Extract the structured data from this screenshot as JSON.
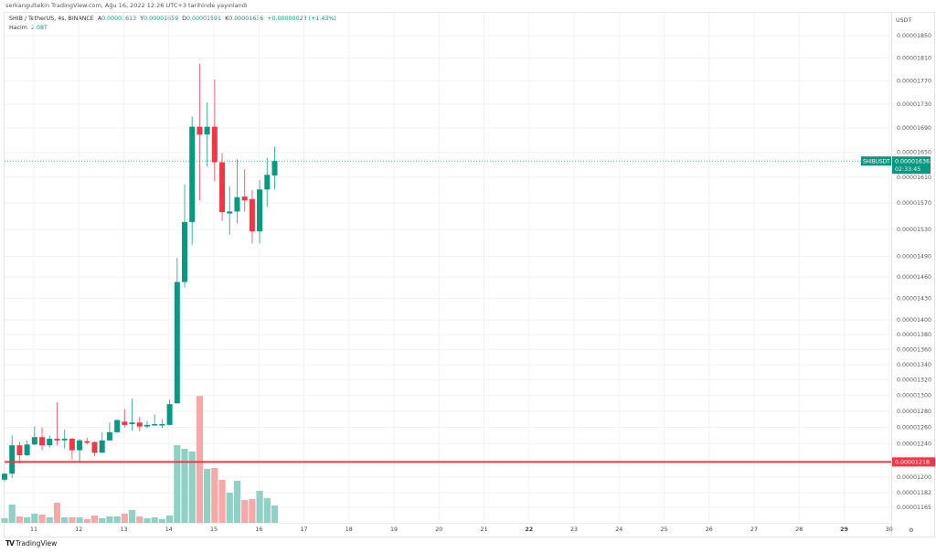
{
  "header": {
    "published": "serkangultekin TradingView.com, Ağu 16, 2022 12:26 UTC+3 tarihinde yayınlandı",
    "symbol_line": "SHIB / TetherUS, 4s, BINANCE",
    "open_label": "A",
    "open": "0.00001613",
    "high_label": "Y",
    "high": "0.00001659",
    "low_label": "D",
    "low": "0.00001591",
    "close_label": "K",
    "close": "0.00001636",
    "change": "+0.00000023 (+1.43%)",
    "volume_label": "Hacim",
    "volume": "2.08T"
  },
  "footer": {
    "brand": "TradingView"
  },
  "colors": {
    "up": "#089981",
    "down": "#f23645",
    "up_volume": "#8fd1c5",
    "down_volume": "#f7a9a9",
    "level_line": "#f23645"
  },
  "chart_data": {
    "type": "candlestick",
    "symbol": "SHIBUSDT",
    "timeframe": "4s",
    "y_scale": "log",
    "ylim": [
      1.15e-05,
      1.87e-05
    ],
    "currency": "USDT",
    "grid": true,
    "y_ticks": [
      "0.00001850",
      "0.00001810",
      "0.00001770",
      "0.00001730",
      "0.00001690",
      "0.00001650",
      "0.00001610",
      "0.00001570",
      "0.00001530",
      "0.00001490",
      "0.00001460",
      "0.00001430",
      "0.00001400",
      "0.00001380",
      "0.00001360",
      "0.00001340",
      "0.00001320",
      "0.00001300",
      "0.00001280",
      "0.00001260",
      "0.00001240",
      "0.00001200",
      "0.00001182",
      "0.00001165"
    ],
    "x_ticks": [
      {
        "label": "11",
        "bold": false
      },
      {
        "label": "12",
        "bold": false
      },
      {
        "label": "13",
        "bold": false
      },
      {
        "label": "14",
        "bold": false
      },
      {
        "label": "15",
        "bold": false
      },
      {
        "label": "16",
        "bold": false
      },
      {
        "label": "17",
        "bold": false
      },
      {
        "label": "18",
        "bold": false
      },
      {
        "label": "19",
        "bold": false
      },
      {
        "label": "20",
        "bold": false
      },
      {
        "label": "21",
        "bold": false
      },
      {
        "label": "22",
        "bold": true
      },
      {
        "label": "23",
        "bold": false
      },
      {
        "label": "24",
        "bold": false
      },
      {
        "label": "25",
        "bold": false
      },
      {
        "label": "26",
        "bold": false
      },
      {
        "label": "27",
        "bold": false
      },
      {
        "label": "28",
        "bold": false
      },
      {
        "label": "29",
        "bold": true
      },
      {
        "label": "30",
        "bold": false
      }
    ],
    "last_price": {
      "symbol_label": "SHIBUSDT",
      "price": "0.00001636",
      "countdown": "02:33:45"
    },
    "horizontal_line": {
      "price": "0.00001218"
    },
    "candles_columns": [
      "time",
      "open",
      "high",
      "low",
      "close",
      "volume_T"
    ],
    "candles": [
      [
        "2022-08-10 08:00",
        1.197e-05,
        1.205e-05,
        1.195e-05,
        1.204e-05,
        0.55
      ],
      [
        "2022-08-10 12:00",
        1.204e-05,
        1.25e-05,
        1.199e-05,
        1.238e-05,
        2.19
      ],
      [
        "2022-08-10 16:00",
        1.238e-05,
        1.242e-05,
        1.216e-05,
        1.226e-05,
        0.77
      ],
      [
        "2022-08-10 20:00",
        1.226e-05,
        1.244e-05,
        1.225e-05,
        1.239e-05,
        0.66
      ],
      [
        "2022-08-11 00:00",
        1.239e-05,
        1.261e-05,
        1.238e-05,
        1.248e-05,
        1.1
      ],
      [
        "2022-08-11 04:00",
        1.248e-05,
        1.26e-05,
        1.232e-05,
        1.238e-05,
        0.99
      ],
      [
        "2022-08-11 08:00",
        1.238e-05,
        1.25e-05,
        1.235e-05,
        1.246e-05,
        0.66
      ],
      [
        "2022-08-11 12:00",
        1.246e-05,
        1.291e-05,
        1.238e-05,
        1.244e-05,
        2.4
      ],
      [
        "2022-08-11 16:00",
        1.244e-05,
        1.257e-05,
        1.234e-05,
        1.246e-05,
        0.66
      ],
      [
        "2022-08-11 20:00",
        1.246e-05,
        1.247e-05,
        1.221e-05,
        1.232e-05,
        0.66
      ],
      [
        "2022-08-12 00:00",
        1.232e-05,
        1.246e-05,
        1.218e-05,
        1.244e-05,
        0.66
      ],
      [
        "2022-08-12 04:00",
        1.243e-05,
        1.247e-05,
        1.239e-05,
        1.241e-05,
        0.44
      ],
      [
        "2022-08-12 08:00",
        1.242e-05,
        1.243e-05,
        1.225e-05,
        1.229e-05,
        0.88
      ],
      [
        "2022-08-12 12:00",
        1.229e-05,
        1.254e-05,
        1.229e-05,
        1.244e-05,
        0.55
      ],
      [
        "2022-08-12 16:00",
        1.244e-05,
        1.266e-05,
        1.244e-05,
        1.254e-05,
        0.77
      ],
      [
        "2022-08-12 20:00",
        1.254e-05,
        1.27e-05,
        1.254e-05,
        1.269e-05,
        0.77
      ],
      [
        "2022-08-13 00:00",
        1.267e-05,
        1.283e-05,
        1.26e-05,
        1.263e-05,
        1.1
      ],
      [
        "2022-08-13 04:00",
        1.264e-05,
        1.296e-05,
        1.256e-05,
        1.266e-05,
        1.53
      ],
      [
        "2022-08-13 08:00",
        1.266e-05,
        1.273e-05,
        1.255e-05,
        1.261e-05,
        0.77
      ],
      [
        "2022-08-13 12:00",
        1.261e-05,
        1.268e-05,
        1.259e-05,
        1.263e-05,
        0.55
      ],
      [
        "2022-08-13 16:00",
        1.263e-05,
        1.276e-05,
        1.262e-05,
        1.264e-05,
        0.66
      ],
      [
        "2022-08-13 20:00",
        1.263e-05,
        1.27e-05,
        1.259e-05,
        1.264e-05,
        0.44
      ],
      [
        "2022-08-14 00:00",
        1.263e-05,
        1.295e-05,
        1.263e-05,
        1.289e-05,
        0.88
      ],
      [
        "2022-08-14 04:00",
        1.29e-05,
        1.488e-05,
        1.29e-05,
        1.453e-05,
        9.3
      ],
      [
        "2022-08-14 08:00",
        1.453e-05,
        1.599e-05,
        1.445e-05,
        1.541e-05,
        8.87
      ],
      [
        "2022-08-14 12:00",
        1.541e-05,
        1.709e-05,
        1.507e-05,
        1.692e-05,
        8.54
      ],
      [
        "2022-08-14 16:00",
        1.692e-05,
        1.8e-05,
        1.574e-05,
        1.679e-05,
        15.2
      ],
      [
        "2022-08-14 20:00",
        1.679e-05,
        1.733e-05,
        1.627e-05,
        1.692e-05,
        6.46
      ],
      [
        "2022-08-15 00:00",
        1.692e-05,
        1.772e-05,
        1.604e-05,
        1.634e-05,
        6.57
      ],
      [
        "2022-08-15 04:00",
        1.634e-05,
        1.649e-05,
        1.543e-05,
        1.556e-05,
        5.15
      ],
      [
        "2022-08-15 08:00",
        1.554e-05,
        1.596e-05,
        1.522e-05,
        1.557e-05,
        3.61
      ],
      [
        "2022-08-15 12:00",
        1.557e-05,
        1.639e-05,
        1.539e-05,
        1.579e-05,
        5.04
      ],
      [
        "2022-08-15 16:00",
        1.58e-05,
        1.623e-05,
        1.557e-05,
        1.574e-05,
        2.74
      ],
      [
        "2022-08-15 20:00",
        1.576e-05,
        1.59e-05,
        1.509e-05,
        1.527e-05,
        2.85
      ],
      [
        "2022-08-16 00:00",
        1.527e-05,
        1.606e-05,
        1.509e-05,
        1.591e-05,
        3.83
      ],
      [
        "2022-08-16 04:00",
        1.591e-05,
        1.641e-05,
        1.564e-05,
        1.614e-05,
        2.96
      ],
      [
        "2022-08-16 08:00",
        1.613e-05,
        1.659e-05,
        1.591e-05,
        1.636e-05,
        2.08
      ]
    ]
  }
}
